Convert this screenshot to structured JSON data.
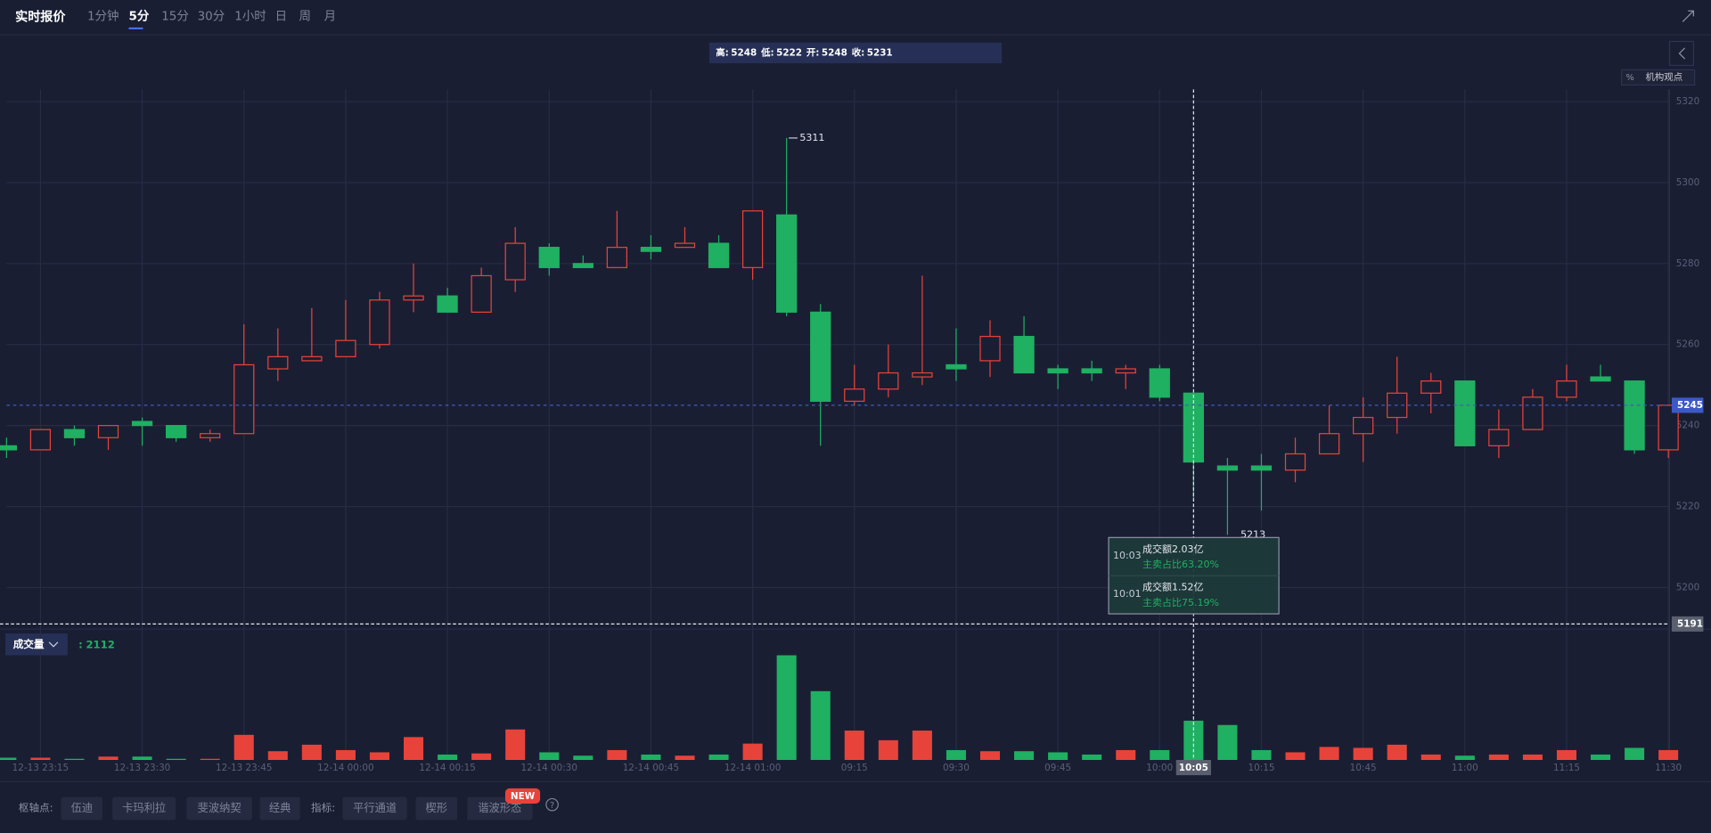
{
  "header": {
    "title": "实时报价",
    "tabs": [
      "1分钟",
      "5分",
      "15分",
      "30分",
      "1小时",
      "日",
      "周",
      "月"
    ],
    "active_tab": "5分"
  },
  "info_bar": [
    {
      "label": "高:",
      "value": 5248
    },
    {
      "label": "低:",
      "value": 5222
    },
    {
      "label": "开:",
      "value": 5248
    },
    {
      "label": "收:",
      "value": 5231
    }
  ],
  "side_buttons": [
    "%",
    "机构观点"
  ],
  "chart_data": {
    "type": "candlestick",
    "categories": [
      null,
      "12-13 23:15",
      null,
      null,
      "12-13 23:30",
      null,
      null,
      "12-13 23:45",
      null,
      null,
      "12-14 00:00",
      null,
      null,
      "12-14 00:15",
      null,
      null,
      "12-14 00:30",
      null,
      null,
      "12-14 00:45",
      null,
      null,
      "12-14 01:00",
      null,
      null,
      "09:15",
      null,
      null,
      "09:30",
      null,
      null,
      "09:45",
      null,
      null,
      "10:00",
      "10:05",
      null,
      "10:15",
      null,
      null,
      "10:45",
      null,
      null,
      "11:00",
      null,
      null,
      "11:15",
      null,
      null,
      "11:30"
    ],
    "open": [
      5235,
      5234,
      5239,
      5237,
      5241,
      5240,
      5237,
      5238,
      5254,
      5256,
      5257,
      5260,
      5271,
      5272,
      5268,
      5276,
      5284,
      5280,
      5279,
      5284,
      5284,
      5285,
      5279,
      5292,
      5268,
      5246,
      5249,
      5252,
      5255,
      5256,
      5262,
      5254,
      5254,
      5253,
      5254,
      5248,
      5230,
      5230,
      5229,
      5233,
      5238,
      5242,
      5248,
      5251,
      5235,
      5239,
      5247,
      5252,
      5251,
      5234
    ],
    "high": [
      5237,
      5239,
      5240,
      5240,
      5242,
      5240,
      5239,
      5265,
      5264,
      5269,
      5271,
      5273,
      5280,
      5274,
      5279,
      5289,
      5285,
      5282,
      5293,
      5287,
      5289,
      5287,
      5293,
      5311,
      5270,
      5255,
      5260,
      5277,
      5264,
      5266,
      5267,
      5255,
      5256,
      5255,
      5255,
      5248,
      5232,
      5233,
      5237,
      5245,
      5247,
      5257,
      5253,
      5251,
      5244,
      5249,
      5255,
      5255,
      5251,
      5245
    ],
    "low": [
      5232,
      5234,
      5235,
      5234,
      5235,
      5236,
      5236,
      5238,
      5251,
      5256,
      5257,
      5259,
      5268,
      5268,
      5268,
      5273,
      5277,
      5279,
      5279,
      5281,
      5284,
      5279,
      5276,
      5267,
      5235,
      5245,
      5247,
      5250,
      5251,
      5252,
      5253,
      5249,
      5251,
      5249,
      5246,
      5222,
      5213,
      5219,
      5226,
      5233,
      5231,
      5238,
      5243,
      5235,
      5232,
      5239,
      5246,
      5251,
      5233,
      5232
    ],
    "close": [
      5234,
      5239,
      5237,
      5240,
      5240,
      5237,
      5238,
      5255,
      5257,
      5257,
      5261,
      5271,
      5272,
      5268,
      5277,
      5285,
      5279,
      5279,
      5284,
      5283,
      5285,
      5279,
      5293,
      5268,
      5246,
      5249,
      5253,
      5253,
      5254,
      5262,
      5253,
      5253,
      5253,
      5254,
      5247,
      5231,
      5229,
      5229,
      5233,
      5238,
      5242,
      5248,
      5251,
      5235,
      5239,
      5247,
      5251,
      5251,
      5234,
      5245
    ],
    "volume": [
      120,
      120,
      60,
      180,
      180,
      60,
      60,
      1350,
      470,
      820,
      530,
      410,
      1230,
      290,
      350,
      1640,
      410,
      230,
      530,
      290,
      230,
      290,
      880,
      5630,
      3700,
      1580,
      1060,
      1580,
      530,
      470,
      470,
      410,
      290,
      530,
      530,
      2112,
      1880,
      530,
      410,
      700,
      650,
      820,
      290,
      230,
      290,
      290,
      530,
      290,
      650,
      530
    ],
    "up_color": "#e8433a",
    "down_color": "#1fb062",
    "ylim": [
      5190,
      5323
    ],
    "yticks": [
      5200,
      5220,
      5240,
      5260,
      5280,
      5300,
      5320
    ],
    "grid": true,
    "last_price": 5245,
    "crosshair_price": 5191,
    "high_label": 5311,
    "low_label": 5213
  },
  "volume_panel": {
    "title": "成交量",
    "readout_label": ":",
    "readout": 2112
  },
  "tooltip": [
    {
      "time": "10:03",
      "amount": "成交额2.03亿",
      "ratio": "主卖占比63.20%"
    },
    {
      "time": "10:01",
      "amount": "成交额1.52亿",
      "ratio": "主卖占比75.19%"
    }
  ],
  "toolbar": {
    "pivot_label": "枢轴点:",
    "pivots": [
      "伍迪",
      "卡玛利拉",
      "斐波纳契",
      "经典"
    ],
    "indicator_label": "指标:",
    "indicators": [
      "平行通道",
      "楔形",
      "谐波形态"
    ],
    "badge": "NEW",
    "help": "?"
  }
}
